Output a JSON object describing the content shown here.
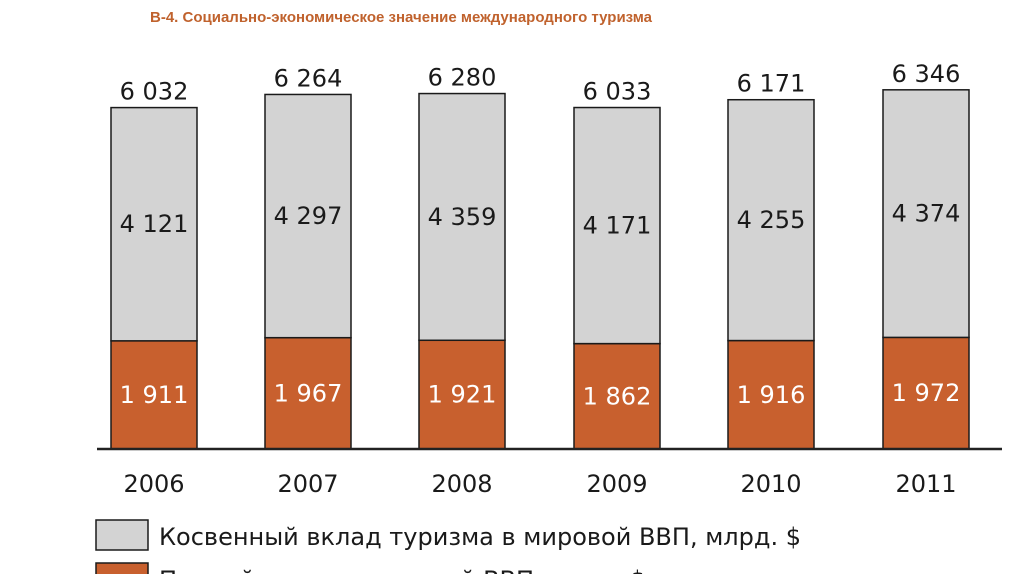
{
  "title": "В-4. Социально-экономическое значение международного туризма",
  "colors": {
    "indirect": "#d3d3d3",
    "direct": "#c8602e",
    "title": "#c0622d",
    "axis": "#222222",
    "border": "#1a1a1a"
  },
  "chart_data": {
    "type": "bar",
    "stacked": true,
    "categories": [
      "2006",
      "2007",
      "2008",
      "2009",
      "2010",
      "2011"
    ],
    "totals": [
      "6 032",
      "6 264",
      "6 280",
      "6 033",
      "6 171",
      "6 346"
    ],
    "series": [
      {
        "name": "Прямой вклад в мировой ВВП, млрд. $",
        "color": "#c8602e",
        "values": [
          1911,
          1967,
          1921,
          1862,
          1916,
          1972
        ],
        "labels": [
          "1 911",
          "1 967",
          "1 921",
          "1 862",
          "1 916",
          "1 972"
        ]
      },
      {
        "name": "Косвенный вклад туризма в мировой ВВП, млрд. $",
        "color": "#d3d3d3",
        "values": [
          4121,
          4297,
          4359,
          4171,
          4255,
          4374
        ],
        "labels": [
          "4 121",
          "4 297",
          "4 359",
          "4 171",
          "4 255",
          "4 374"
        ]
      }
    ],
    "legend": [
      "Косвенный вклад туризма в мировой ВВП, млрд. $",
      "Прямой вклад в мировой ВВП, млрд. $"
    ],
    "legend_position": "bottom"
  }
}
